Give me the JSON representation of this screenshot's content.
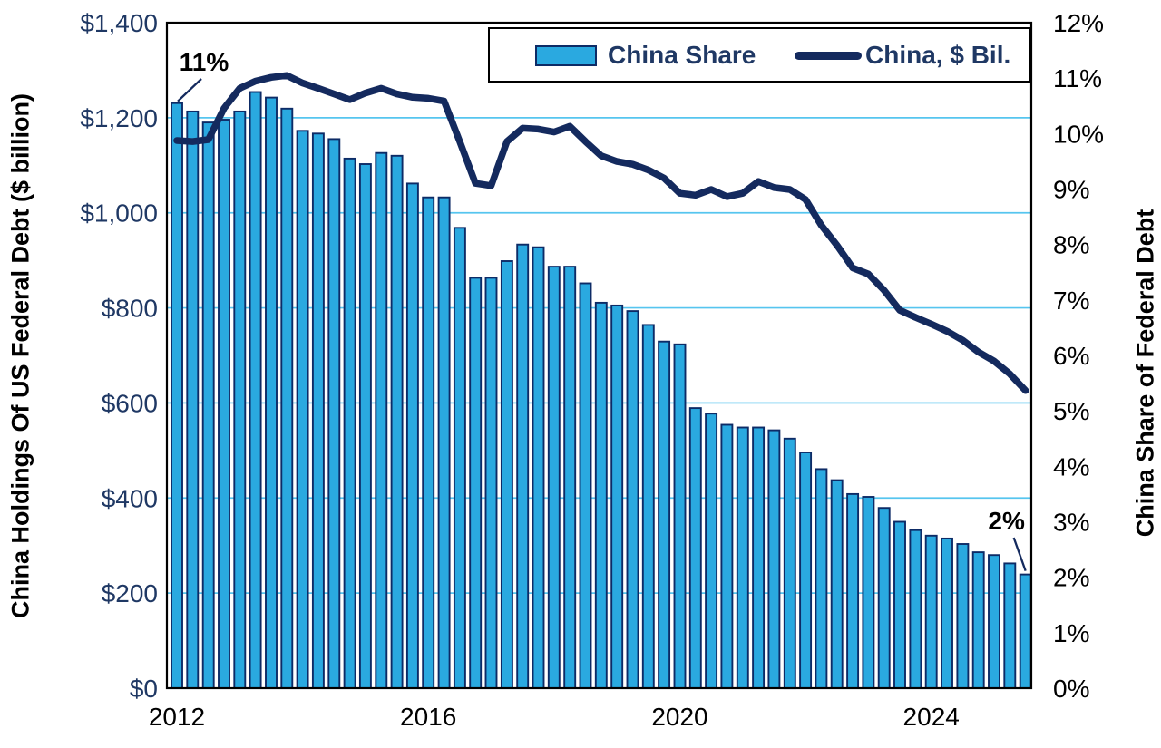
{
  "chart_data": {
    "type": "combo_bar_line",
    "title": "",
    "categories": [
      "2012 Q1",
      "2012 Q2",
      "2012 Q3",
      "2012 Q4",
      "2013 Q1",
      "2013 Q2",
      "2013 Q3",
      "2013 Q4",
      "2014 Q1",
      "2014 Q2",
      "2014 Q3",
      "2014 Q4",
      "2015 Q1",
      "2015 Q2",
      "2015 Q3",
      "2015 Q4",
      "2016 Q1",
      "2016 Q2",
      "2016 Q3",
      "2016 Q4",
      "2017 Q1",
      "2017 Q2",
      "2017 Q3",
      "2017 Q4",
      "2018 Q1",
      "2018 Q2",
      "2018 Q3",
      "2018 Q4",
      "2019 Q1",
      "2019 Q2",
      "2019 Q3",
      "2019 Q4",
      "2020 Q1",
      "2020 Q2",
      "2020 Q3",
      "2020 Q4",
      "2021 Q1",
      "2021 Q2",
      "2021 Q3",
      "2021 Q4",
      "2022 Q1",
      "2022 Q2",
      "2022 Q3",
      "2022 Q4",
      "2023 Q1",
      "2023 Q2",
      "2023 Q3",
      "2023 Q4",
      "2024 Q1",
      "2024 Q2",
      "2024 Q3",
      "2024 Q4",
      "2025 Q1",
      "2025 Q2",
      "2025 Q3"
    ],
    "series": [
      {
        "name": "China Share",
        "type": "bar",
        "y_axis": "right",
        "unit": "% of federal debt",
        "values": [
          10.55,
          10.4,
          10.2,
          10.25,
          10.4,
          10.75,
          10.65,
          10.45,
          10.05,
          10.0,
          9.9,
          9.55,
          9.45,
          9.65,
          9.6,
          9.1,
          8.85,
          8.85,
          8.3,
          7.4,
          7.4,
          7.7,
          8.0,
          7.95,
          7.6,
          7.6,
          7.3,
          6.95,
          6.9,
          6.8,
          6.55,
          6.25,
          6.2,
          5.05,
          4.95,
          4.75,
          4.7,
          4.7,
          4.65,
          4.5,
          4.25,
          3.95,
          3.75,
          3.5,
          3.45,
          3.25,
          3.0,
          2.85,
          2.75,
          2.7,
          2.6,
          2.45,
          2.4,
          2.25,
          2.05
        ]
      },
      {
        "name": "China, $ Bil.",
        "type": "line",
        "y_axis": "left",
        "unit": "$ billion",
        "values": [
          1152,
          1150,
          1154,
          1220,
          1262,
          1277,
          1285,
          1289,
          1273,
          1262,
          1250,
          1238,
          1252,
          1262,
          1250,
          1243,
          1241,
          1235,
          1150,
          1062,
          1057,
          1150,
          1178,
          1176,
          1170,
          1182,
          1150,
          1120,
          1108,
          1102,
          1090,
          1073,
          1041,
          1037,
          1049,
          1034,
          1041,
          1066,
          1053,
          1049,
          1028,
          974,
          932,
          884,
          871,
          837,
          795,
          780,
          766,
          751,
          732,
          707,
          688,
          661,
          626
        ]
      }
    ],
    "left_axis": {
      "label": "China Holdings Of US Federal Debt ($ billion)",
      "range": [
        0,
        1400
      ],
      "tick_values": [
        0,
        200,
        400,
        600,
        800,
        1000,
        1200,
        1400
      ],
      "tick_labels": [
        "$0",
        "$200",
        "$400",
        "$600",
        "$800",
        "$1,000",
        "$1,200",
        "$1,400"
      ],
      "gridlines": [
        200,
        400,
        600,
        800,
        1000,
        1200
      ]
    },
    "right_axis": {
      "label": "China Share of Federal Debt",
      "range": [
        0,
        12
      ],
      "tick_values": [
        0,
        1,
        2,
        3,
        4,
        5,
        6,
        7,
        8,
        9,
        10,
        11,
        12
      ],
      "tick_labels": [
        "0%",
        "1%",
        "2%",
        "3%",
        "4%",
        "5%",
        "6%",
        "7%",
        "8%",
        "9%",
        "10%",
        "11%",
        "12%"
      ]
    },
    "x_axis": {
      "ticks": [
        {
          "label": "2012",
          "category_index": 0
        },
        {
          "label": "2016",
          "category_index": 16
        },
        {
          "label": "2020",
          "category_index": 32
        },
        {
          "label": "2024",
          "category_index": 48
        }
      ]
    },
    "legend": {
      "position": "top",
      "items": [
        {
          "label": "China Share",
          "swatch": "bar"
        },
        {
          "label": "China, $ Bil.",
          "swatch": "line"
        }
      ]
    },
    "annotations": [
      {
        "text": "11%",
        "attach": "first-bar",
        "category": "2012 Q1"
      },
      {
        "text": "2%",
        "attach": "last-bar",
        "category": "2025 Q3"
      }
    ],
    "colors": {
      "bar_fill": "#2AA9E0",
      "bar_stroke": "#0D2B66",
      "line": "#142A5E",
      "gridline": "#56C5EF",
      "plot_border": "#000000",
      "left_tick_text": "#1F3864",
      "right_tick_text": "#000000",
      "x_tick_text": "#000000",
      "legend_text": "#1F3864",
      "annotation_text": "#000000"
    }
  }
}
